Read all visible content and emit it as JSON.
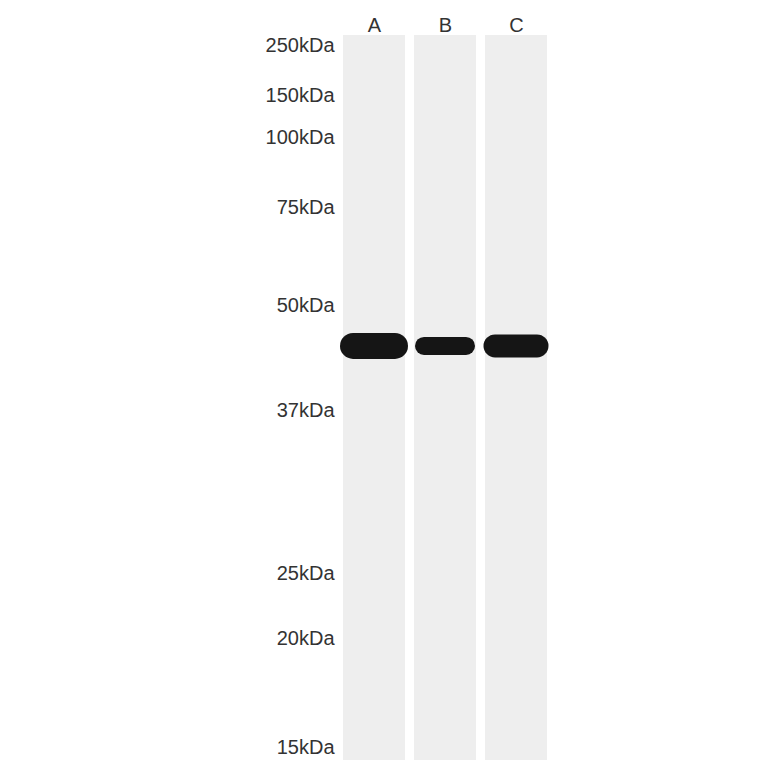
{
  "chart_data": {
    "type": "western_blot",
    "categories": [
      "A",
      "B",
      "C"
    ],
    "values": [
      45,
      45,
      45
    ],
    "ylim": [
      250,
      15
    ],
    "yticks": [
      {
        "value": 250,
        "label": "250kDa"
      },
      {
        "value": 150,
        "label": "150kDa"
      },
      {
        "value": 100,
        "label": "100kDa"
      },
      {
        "value": 75,
        "label": "75kDa"
      },
      {
        "value": 50,
        "label": "50kDa"
      },
      {
        "value": 37,
        "label": "37kDa"
      },
      {
        "value": 25,
        "label": "25kDa"
      },
      {
        "value": 20,
        "label": "20kDa"
      },
      {
        "value": 15,
        "label": "15kDa"
      }
    ]
  }
}
